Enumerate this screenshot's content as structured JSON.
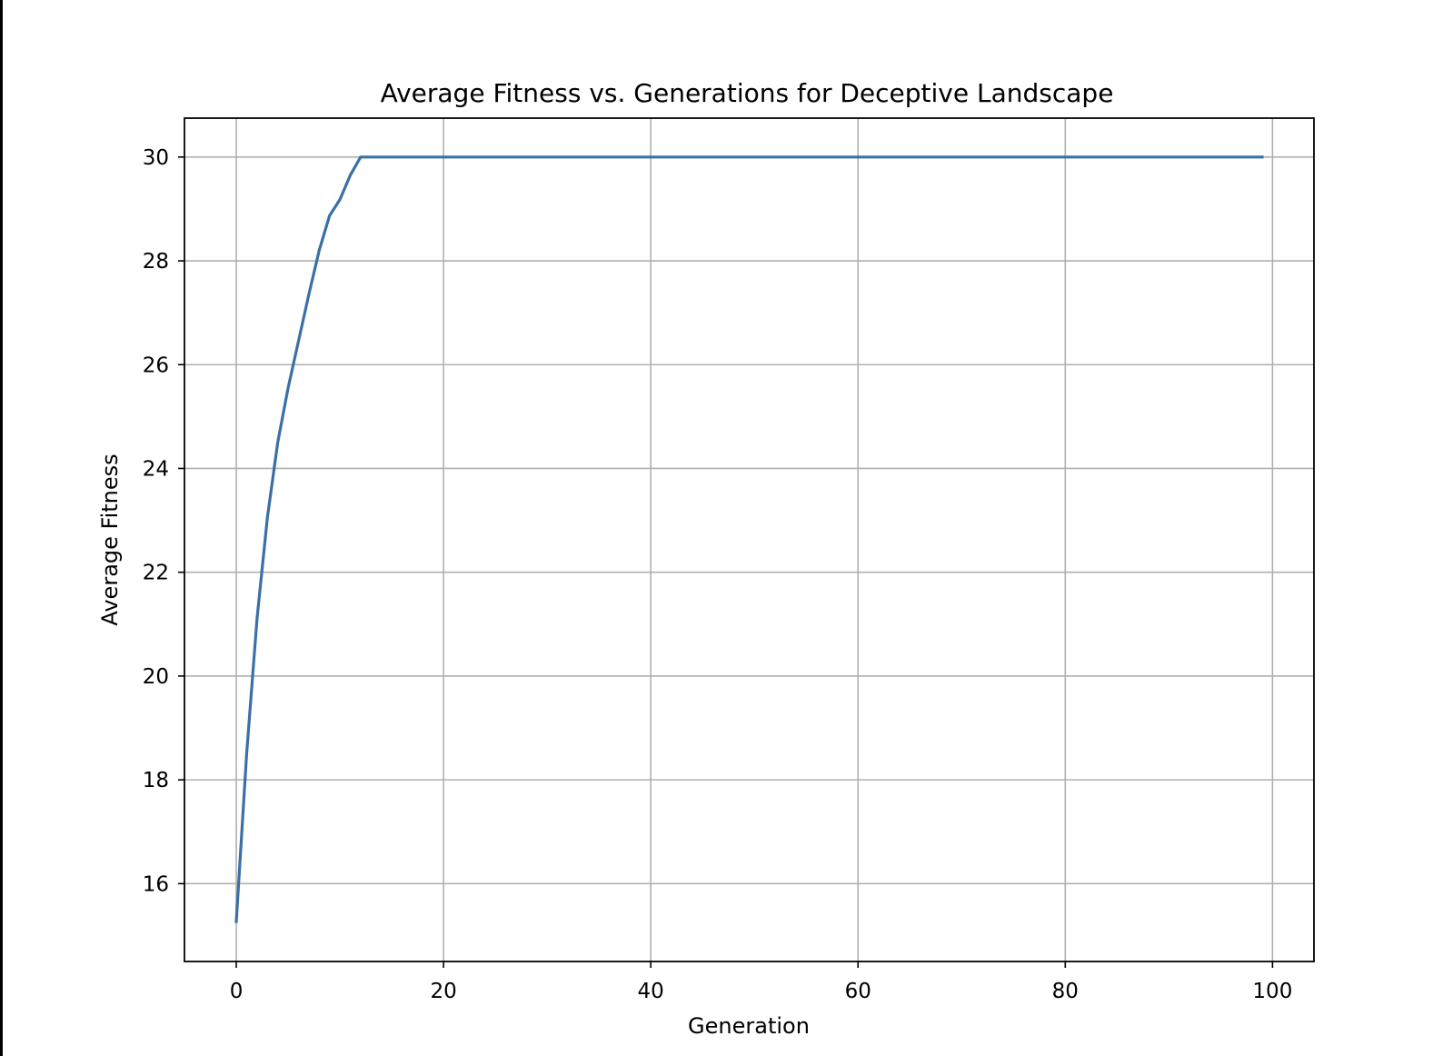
{
  "chart_data": {
    "type": "line",
    "title": "Average Fitness vs. Generations for Deceptive Landscape",
    "xlabel": "Generation",
    "ylabel": "Average Fitness",
    "xlim": [
      -5,
      104
    ],
    "ylim": [
      14.5,
      30.75
    ],
    "xticks": [
      0,
      20,
      40,
      60,
      80,
      100
    ],
    "yticks": [
      16,
      18,
      20,
      22,
      24,
      26,
      28,
      30
    ],
    "grid": true,
    "legend": "none",
    "colors": {
      "line": "#3a70a5",
      "grid": "#b0b0b0",
      "axes": "#000000"
    },
    "series": [
      {
        "x": [
          0,
          1,
          2,
          3,
          4,
          5,
          6,
          7,
          8,
          9,
          10,
          11,
          12,
          13,
          20,
          30,
          40,
          50,
          60,
          70,
          80,
          90,
          99
        ],
        "values": [
          15.27,
          18.5,
          21.1,
          23.05,
          24.5,
          25.55,
          26.45,
          27.35,
          28.2,
          28.87,
          29.18,
          29.65,
          30.0,
          30.0,
          30.0,
          30.0,
          30.0,
          30.0,
          30.0,
          30.0,
          30.0,
          30.0,
          30.0
        ]
      }
    ]
  }
}
